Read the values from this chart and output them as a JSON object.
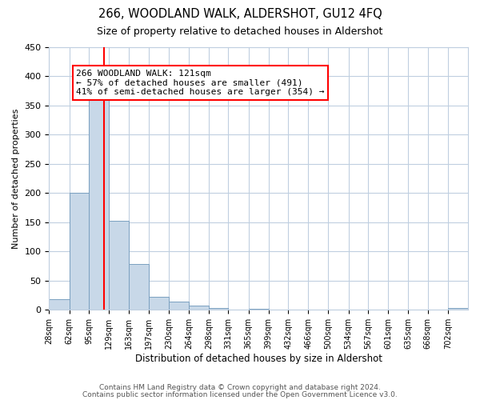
{
  "title": "266, WOODLAND WALK, ALDERSHOT, GU12 4FQ",
  "subtitle": "Size of property relative to detached houses in Aldershot",
  "xlabel": "Distribution of detached houses by size in Aldershot",
  "ylabel": "Number of detached properties",
  "bin_labels": [
    "28sqm",
    "62sqm",
    "95sqm",
    "129sqm",
    "163sqm",
    "197sqm",
    "230sqm",
    "264sqm",
    "298sqm",
    "331sqm",
    "365sqm",
    "399sqm",
    "432sqm",
    "466sqm",
    "500sqm",
    "534sqm",
    "567sqm",
    "601sqm",
    "635sqm",
    "668sqm",
    "702sqm"
  ],
  "bin_edges": [
    28,
    62,
    95,
    129,
    163,
    197,
    230,
    264,
    298,
    331,
    365,
    399,
    432,
    466,
    500,
    534,
    567,
    601,
    635,
    668,
    702,
    736
  ],
  "bar_heights": [
    18,
    201,
    366,
    153,
    79,
    22,
    14,
    7,
    3,
    0,
    2,
    0,
    0,
    0,
    0,
    0,
    0,
    0,
    0,
    0,
    3
  ],
  "bar_color": "#c8d8e8",
  "bar_edge_color": "#7aa0c0",
  "property_line_x": 121,
  "property_line_color": "red",
  "annotation_box_text": "266 WOODLAND WALK: 121sqm\n← 57% of detached houses are smaller (491)\n41% of semi-detached houses are larger (354) →",
  "annotation_box_edge_color": "red",
  "ylim": [
    0,
    450
  ],
  "yticks": [
    0,
    50,
    100,
    150,
    200,
    250,
    300,
    350,
    400,
    450
  ],
  "background_color": "#ffffff",
  "grid_color": "#c0cfe0",
  "footer_line1": "Contains HM Land Registry data © Crown copyright and database right 2024.",
  "footer_line2": "Contains public sector information licensed under the Open Government Licence v3.0."
}
